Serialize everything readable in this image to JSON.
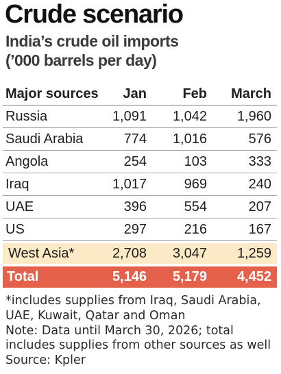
{
  "chart_data": {
    "type": "table",
    "title": "Crude scenario",
    "subtitle": [
      "India’s crude oil imports",
      "(’000 barrels per day)"
    ],
    "columns": [
      "Major sources",
      "Jan",
      "Feb",
      "March"
    ],
    "rows": [
      {
        "label": "Russia",
        "values": [
          1091,
          1042,
          1960
        ]
      },
      {
        "label": "Saudi Arabia",
        "values": [
          774,
          1016,
          576
        ]
      },
      {
        "label": "Angola",
        "values": [
          254,
          103,
          333
        ]
      },
      {
        "label": "Iraq",
        "values": [
          1017,
          969,
          240
        ]
      },
      {
        "label": "UAE",
        "values": [
          396,
          554,
          207
        ]
      },
      {
        "label": "US",
        "values": [
          297,
          216,
          167
        ]
      }
    ],
    "highlight_row": {
      "label": "West Asia*",
      "values": [
        2708,
        3047,
        1259
      ]
    },
    "total_row": {
      "label": "Total",
      "values": [
        5146,
        5179,
        4452
      ]
    }
  },
  "footnotes": [
    "*includes supplies from Iraq, Saudi Arabia,",
    "UAE, Kuwait, Qatar and Oman",
    "Note: Data until March 30, 2026; total",
    "includes supplies from other sources as well",
    "Source: Kpler"
  ],
  "colors": {
    "title": "#111111",
    "subtitle": "#3a3a3a",
    "text": "#1f1f1f",
    "rule": "#a3a3a3",
    "rule_strong": "#7f7f7f",
    "highlight_row": "#fce9c6",
    "total_row": "#e5614c",
    "total_text": "#ffffff",
    "notes": "#2b2b2b"
  }
}
